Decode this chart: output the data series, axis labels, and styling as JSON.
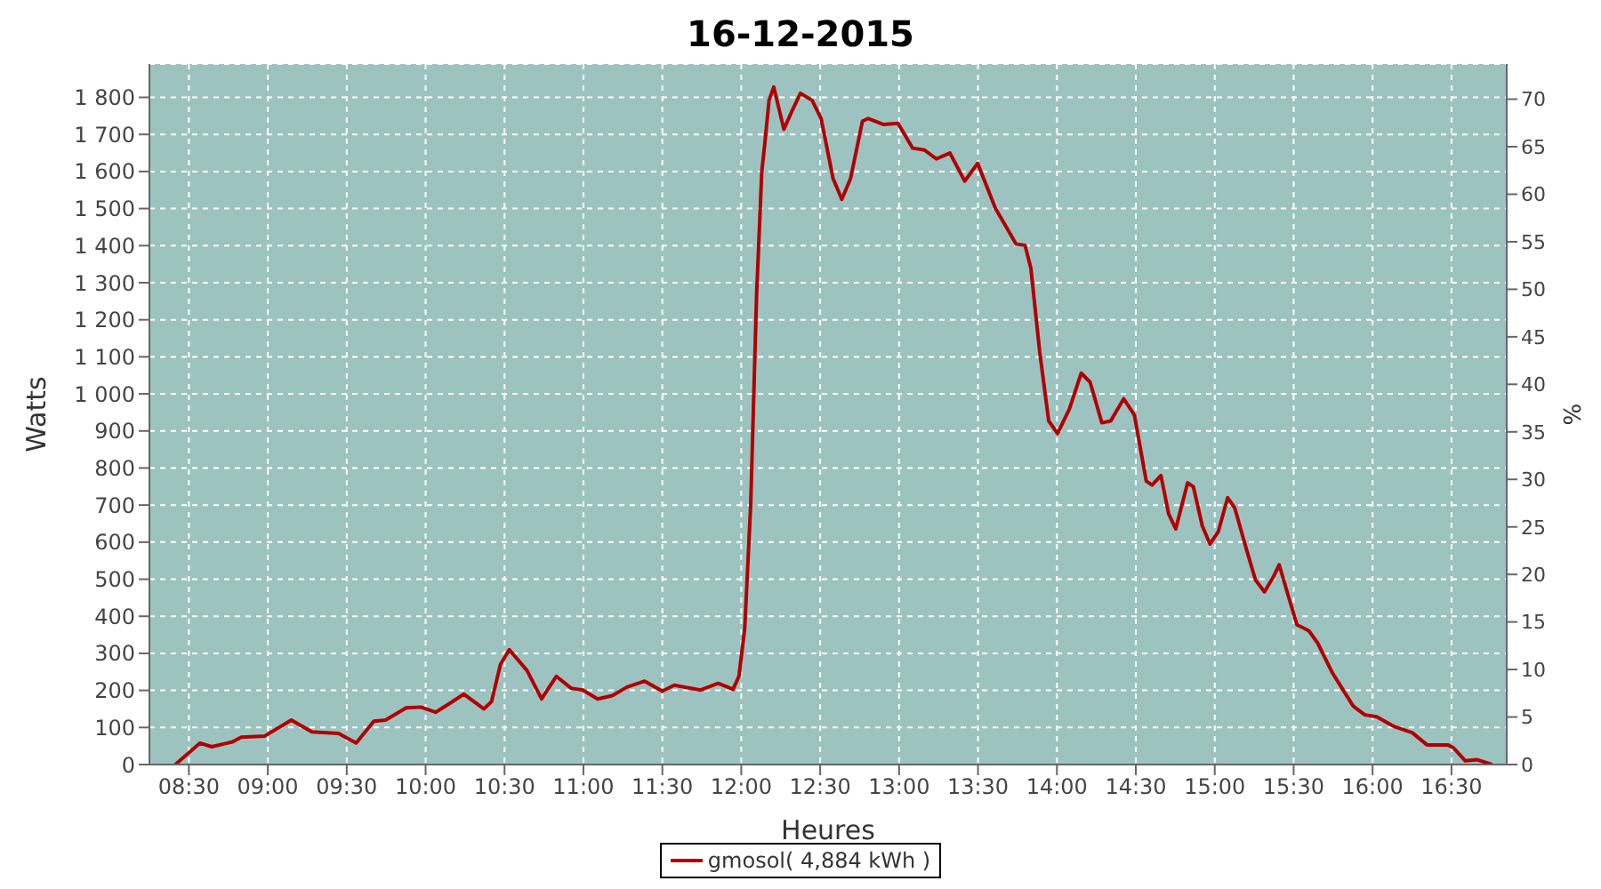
{
  "chart_data": {
    "type": "line",
    "title": "16-12-2015",
    "xlabel": "Heures",
    "ylabel": "Watts",
    "y2label": "%",
    "xlim": [
      8.25,
      16.85
    ],
    "xticks": [
      {
        "value": 8.5,
        "label": "08:30"
      },
      {
        "value": 9,
        "label": "09:00"
      },
      {
        "value": 9.5,
        "label": "09:30"
      },
      {
        "value": 10,
        "label": "10:00"
      },
      {
        "value": 10.5,
        "label": "10:30"
      },
      {
        "value": 11,
        "label": "11:00"
      },
      {
        "value": 11.5,
        "label": "11:30"
      },
      {
        "value": 12,
        "label": "12:00"
      },
      {
        "value": 12.5,
        "label": "12:30"
      },
      {
        "value": 13,
        "label": "13:00"
      },
      {
        "value": 13.5,
        "label": "13:30"
      },
      {
        "value": 14,
        "label": "14:00"
      },
      {
        "value": 14.5,
        "label": "14:30"
      },
      {
        "value": 15,
        "label": "15:00"
      },
      {
        "value": 15.5,
        "label": "15:30"
      },
      {
        "value": 16,
        "label": "16:00"
      },
      {
        "value": 16.5,
        "label": "16:30"
      }
    ],
    "ylim": [
      0,
      1890
    ],
    "yticks": [
      0,
      100,
      200,
      300,
      400,
      500,
      600,
      700,
      800,
      900,
      {
        "value": 1000,
        "label": "1 000"
      },
      {
        "value": 1100,
        "label": "1 100"
      },
      {
        "value": 1200,
        "label": "1 200"
      },
      {
        "value": 1300,
        "label": "1 300"
      },
      {
        "value": 1400,
        "label": "1 400"
      },
      {
        "value": 1500,
        "label": "1 500"
      },
      {
        "value": 1600,
        "label": "1 600"
      },
      {
        "value": 1700,
        "label": "1 700"
      },
      {
        "value": 1800,
        "label": "1 800"
      }
    ],
    "y2lim": [
      0,
      73.7
    ],
    "y2ticks": [
      0,
      5,
      10,
      15,
      20,
      25,
      30,
      35,
      40,
      45,
      50,
      55,
      60,
      65,
      70
    ],
    "grid": true,
    "legend": "bottom",
    "marker": "none",
    "line_style": "solid",
    "series": [
      {
        "name": "gmosol( 4,884 kWh )",
        "color": "#b00000",
        "x": [
          8.414,
          8.571,
          8.645,
          8.776,
          8.832,
          8.981,
          9.149,
          9.28,
          9.448,
          9.56,
          9.672,
          9.746,
          9.877,
          9.97,
          10.063,
          10.157,
          10.243,
          10.369,
          10.418,
          10.474,
          10.53,
          10.642,
          10.735,
          10.828,
          10.922,
          10.996,
          11.09,
          11.183,
          11.276,
          11.388,
          11.5,
          11.575,
          11.743,
          11.854,
          11.948,
          11.985,
          12.022,
          12.06,
          12.097,
          12.13,
          12.15,
          12.176,
          12.206,
          12.27,
          12.318,
          12.375,
          12.449,
          12.506,
          12.581,
          12.637,
          12.693,
          12.768,
          12.805,
          12.899,
          12.993,
          13.086,
          13.161,
          13.236,
          13.322,
          13.416,
          13.498,
          13.61,
          13.742,
          13.798,
          13.835,
          13.891,
          13.948,
          14.004,
          14.079,
          14.154,
          14.21,
          14.285,
          14.341,
          14.423,
          14.491,
          14.566,
          14.603,
          14.659,
          14.708,
          14.753,
          14.828,
          14.865,
          14.921,
          14.97,
          15.022,
          15.082,
          15.127,
          15.202,
          15.258,
          15.315,
          15.371,
          15.408,
          15.464,
          15.521,
          15.596,
          15.652,
          15.746,
          15.877,
          15.951,
          16.026,
          16.139,
          16.251,
          16.345,
          16.476,
          16.513,
          16.588,
          16.663,
          16.757
        ],
        "values": [
          0,
          58,
          48,
          61,
          74,
          77,
          120,
          88,
          84,
          58,
          117,
          120,
          153,
          155,
          141,
          166,
          190,
          150,
          170,
          270,
          310,
          254,
          177,
          238,
          206,
          201,
          177,
          186,
          209,
          225,
          198,
          214,
          201,
          219,
          203,
          238,
          367,
          704,
          1267,
          1600,
          1679,
          1792,
          1828,
          1714,
          1760,
          1811,
          1792,
          1743,
          1582,
          1525,
          1582,
          1736,
          1743,
          1727,
          1730,
          1663,
          1658,
          1634,
          1650,
          1574,
          1622,
          1501,
          1404,
          1401,
          1339,
          1113,
          927,
          893,
          959,
          1056,
          1032,
          922,
          927,
          987,
          943,
          765,
          754,
          780,
          676,
          636,
          760,
          749,
          644,
          595,
          628,
          720,
          692,
          579,
          498,
          466,
          506,
          539,
          458,
          377,
          361,
          328,
          247,
          158,
          134,
          129,
          102,
          86,
          53,
          53,
          45,
          10,
          13,
          0
        ]
      }
    ]
  }
}
